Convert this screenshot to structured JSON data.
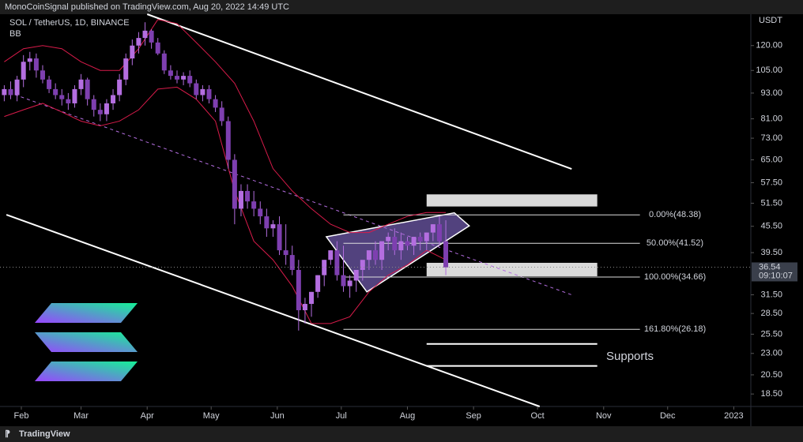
{
  "header": {
    "publisher": "MonoCoinSignal published on TradingView.com, Aug 20, 2022 14:49 UTC",
    "footer": "TradingView"
  },
  "chart_data": {
    "type": "candlestick",
    "title": "SOL / TetherUS, 1D, BINANCE",
    "indicator": "BB",
    "y_axis_label": "USDT",
    "log": true,
    "x": [
      24,
      27,
      30,
      33,
      36,
      39,
      42,
      45,
      48,
      51,
      54,
      57,
      60,
      63,
      66,
      69,
      72,
      75,
      78,
      81,
      84,
      87,
      90,
      93,
      96,
      99,
      102,
      105,
      108,
      111,
      114,
      117,
      120,
      123,
      126,
      129,
      132,
      135,
      138,
      141,
      144,
      147,
      150,
      153,
      156,
      159,
      162,
      165,
      168,
      171,
      174,
      177,
      180,
      183,
      186,
      189,
      192,
      195,
      198,
      201,
      204,
      207,
      210,
      213,
      216,
      219,
      222,
      225,
      228,
      231
    ],
    "open": [
      92,
      95,
      92,
      100,
      110,
      112,
      105,
      100,
      95,
      92,
      90,
      88,
      95,
      100,
      90,
      85,
      83,
      88,
      92,
      100,
      112,
      120,
      125,
      130,
      122,
      115,
      105,
      102,
      100,
      102,
      98,
      92,
      95,
      90,
      86,
      80,
      65,
      50,
      55,
      52,
      50,
      48,
      45,
      46,
      40,
      39,
      36,
      29,
      30,
      32,
      35,
      38,
      40,
      35,
      33,
      34,
      36,
      38,
      40,
      38,
      42,
      43,
      40,
      42,
      41,
      43,
      42,
      44,
      46,
      42
    ],
    "high": [
      97,
      99,
      102,
      114,
      116,
      115,
      108,
      102,
      98,
      95,
      93,
      97,
      103,
      101,
      92,
      88,
      90,
      95,
      103,
      115,
      124,
      129,
      136,
      131,
      125,
      117,
      108,
      105,
      104,
      105,
      100,
      97,
      97,
      92,
      89,
      82,
      67,
      57,
      57,
      55,
      52,
      50,
      47,
      48,
      46,
      41,
      38,
      31,
      32,
      35,
      38,
      40,
      42,
      41,
      35,
      35,
      37,
      39,
      42,
      41,
      44,
      45,
      44,
      43,
      43,
      44,
      44,
      46,
      48,
      47
    ],
    "low": [
      89,
      90,
      89,
      96,
      105,
      101,
      98,
      93,
      90,
      87,
      85,
      86,
      92,
      87,
      82,
      80,
      80,
      85,
      89,
      97,
      108,
      115,
      120,
      118,
      114,
      103,
      100,
      98,
      97,
      96,
      90,
      89,
      88,
      84,
      78,
      62,
      46,
      48,
      50,
      48,
      46,
      43,
      43,
      39,
      37,
      35,
      26,
      27,
      28,
      31,
      33,
      37,
      34,
      32,
      31,
      32,
      34,
      36,
      37,
      36,
      40,
      39,
      38,
      40,
      39,
      40,
      40,
      42,
      41,
      35
    ],
    "close": [
      95,
      92,
      100,
      110,
      112,
      105,
      100,
      95,
      92,
      90,
      88,
      95,
      100,
      90,
      85,
      83,
      88,
      92,
      100,
      112,
      120,
      125,
      130,
      122,
      115,
      105,
      102,
      100,
      102,
      98,
      92,
      95,
      90,
      86,
      80,
      65,
      50,
      55,
      52,
      50,
      48,
      45,
      46,
      40,
      39,
      36,
      29,
      30,
      32,
      35,
      38,
      40,
      35,
      33,
      34,
      36,
      38,
      40,
      38,
      42,
      43,
      40,
      42,
      41,
      43,
      42,
      44,
      46,
      42,
      36.5
    ],
    "color": "#b46ee0",
    "bb": {
      "color": "#d81b4a",
      "x": [
        24,
        33,
        42,
        51,
        60,
        69,
        78,
        87,
        96,
        105,
        114,
        123,
        132,
        141,
        150,
        159,
        168,
        177,
        186,
        195,
        204,
        213,
        222,
        231
      ],
      "upper": [
        110,
        118,
        120,
        118,
        110,
        105,
        105,
        118,
        138,
        135,
        122,
        110,
        98,
        80,
        62,
        55,
        50,
        46,
        44,
        44,
        46,
        48,
        49,
        49
      ],
      "lower": [
        82,
        85,
        88,
        84,
        80,
        78,
        80,
        85,
        95,
        96,
        90,
        80,
        55,
        42,
        38,
        33,
        27,
        27,
        28,
        32,
        35,
        37,
        40,
        38
      ]
    },
    "last_price": {
      "value": 36.54,
      "label": "36.54",
      "countdown": "09:10:07"
    },
    "xlim": [
      22,
      374
    ],
    "ylim": [
      17.3,
      142
    ],
    "xticks": [
      {
        "value": 32,
        "label": "Feb"
      },
      {
        "value": 60,
        "label": "Mar"
      },
      {
        "value": 91,
        "label": "Apr"
      },
      {
        "value": 121,
        "label": "May"
      },
      {
        "value": 152,
        "label": "Jun"
      },
      {
        "value": 182,
        "label": "Jul"
      },
      {
        "value": 213,
        "label": "Aug"
      },
      {
        "value": 244,
        "label": "Sep"
      },
      {
        "value": 274,
        "label": "Oct"
      },
      {
        "value": 305,
        "label": "Nov"
      },
      {
        "value": 335,
        "label": "Dec"
      },
      {
        "value": 366,
        "label": "2023"
      }
    ],
    "yticks": [
      {
        "value": 120,
        "label": "120.00"
      },
      {
        "value": 105,
        "label": "105.00"
      },
      {
        "value": 93,
        "label": "93.00"
      },
      {
        "value": 81,
        "label": "81.00"
      },
      {
        "value": 73,
        "label": "73.00"
      },
      {
        "value": 65,
        "label": "65.00"
      },
      {
        "value": 57.5,
        "label": "57.50"
      },
      {
        "value": 51.5,
        "label": "51.50"
      },
      {
        "value": 45.5,
        "label": "45.50"
      },
      {
        "value": 39.5,
        "label": "39.50"
      },
      {
        "value": 31.5,
        "label": "31.50"
      },
      {
        "value": 28.5,
        "label": "28.50"
      },
      {
        "value": 25.5,
        "label": "25.50"
      },
      {
        "value": 23,
        "label": "23.00"
      },
      {
        "value": 20.5,
        "label": "20.50"
      },
      {
        "value": 18.5,
        "label": "18.50"
      }
    ],
    "fib": [
      {
        "label": "0.00%(48.38)",
        "value": 48.38
      },
      {
        "label": "50.00%(41.52)",
        "value": 41.52
      },
      {
        "label": "100.00%(34.66)",
        "value": 34.66
      },
      {
        "label": "161.80%(26.18)",
        "value": 26.18
      }
    ],
    "fib_x": [
      183,
      322
    ],
    "supports": {
      "label": "Supports",
      "levels": [
        24.2,
        21.5
      ],
      "x": [
        222,
        302
      ]
    },
    "zones": [
      {
        "x": [
          222,
          302
        ],
        "y": [
          50.6,
          54.0
        ]
      },
      {
        "x": [
          222,
          302
        ],
        "y": [
          34.8,
          37.4
        ]
      }
    ],
    "trend_lines": [
      {
        "points": [
          [
            91,
            142
          ],
          [
            290,
            61.9
          ]
        ],
        "color": "#ffffff"
      },
      {
        "points": [
          [
            25,
            48.4
          ],
          [
            275,
            17.3
          ]
        ],
        "color": "#ffffff"
      },
      {
        "points": [
          [
            29,
            92.2
          ],
          [
            290,
            31.5
          ]
        ],
        "color": "#b46ee0",
        "dashed": true
      }
    ],
    "wedge": {
      "points": [
        [
          175,
          43.0
        ],
        [
          235,
          48.9
        ],
        [
          242,
          45.6
        ],
        [
          194,
          32.0
        ]
      ]
    }
  }
}
